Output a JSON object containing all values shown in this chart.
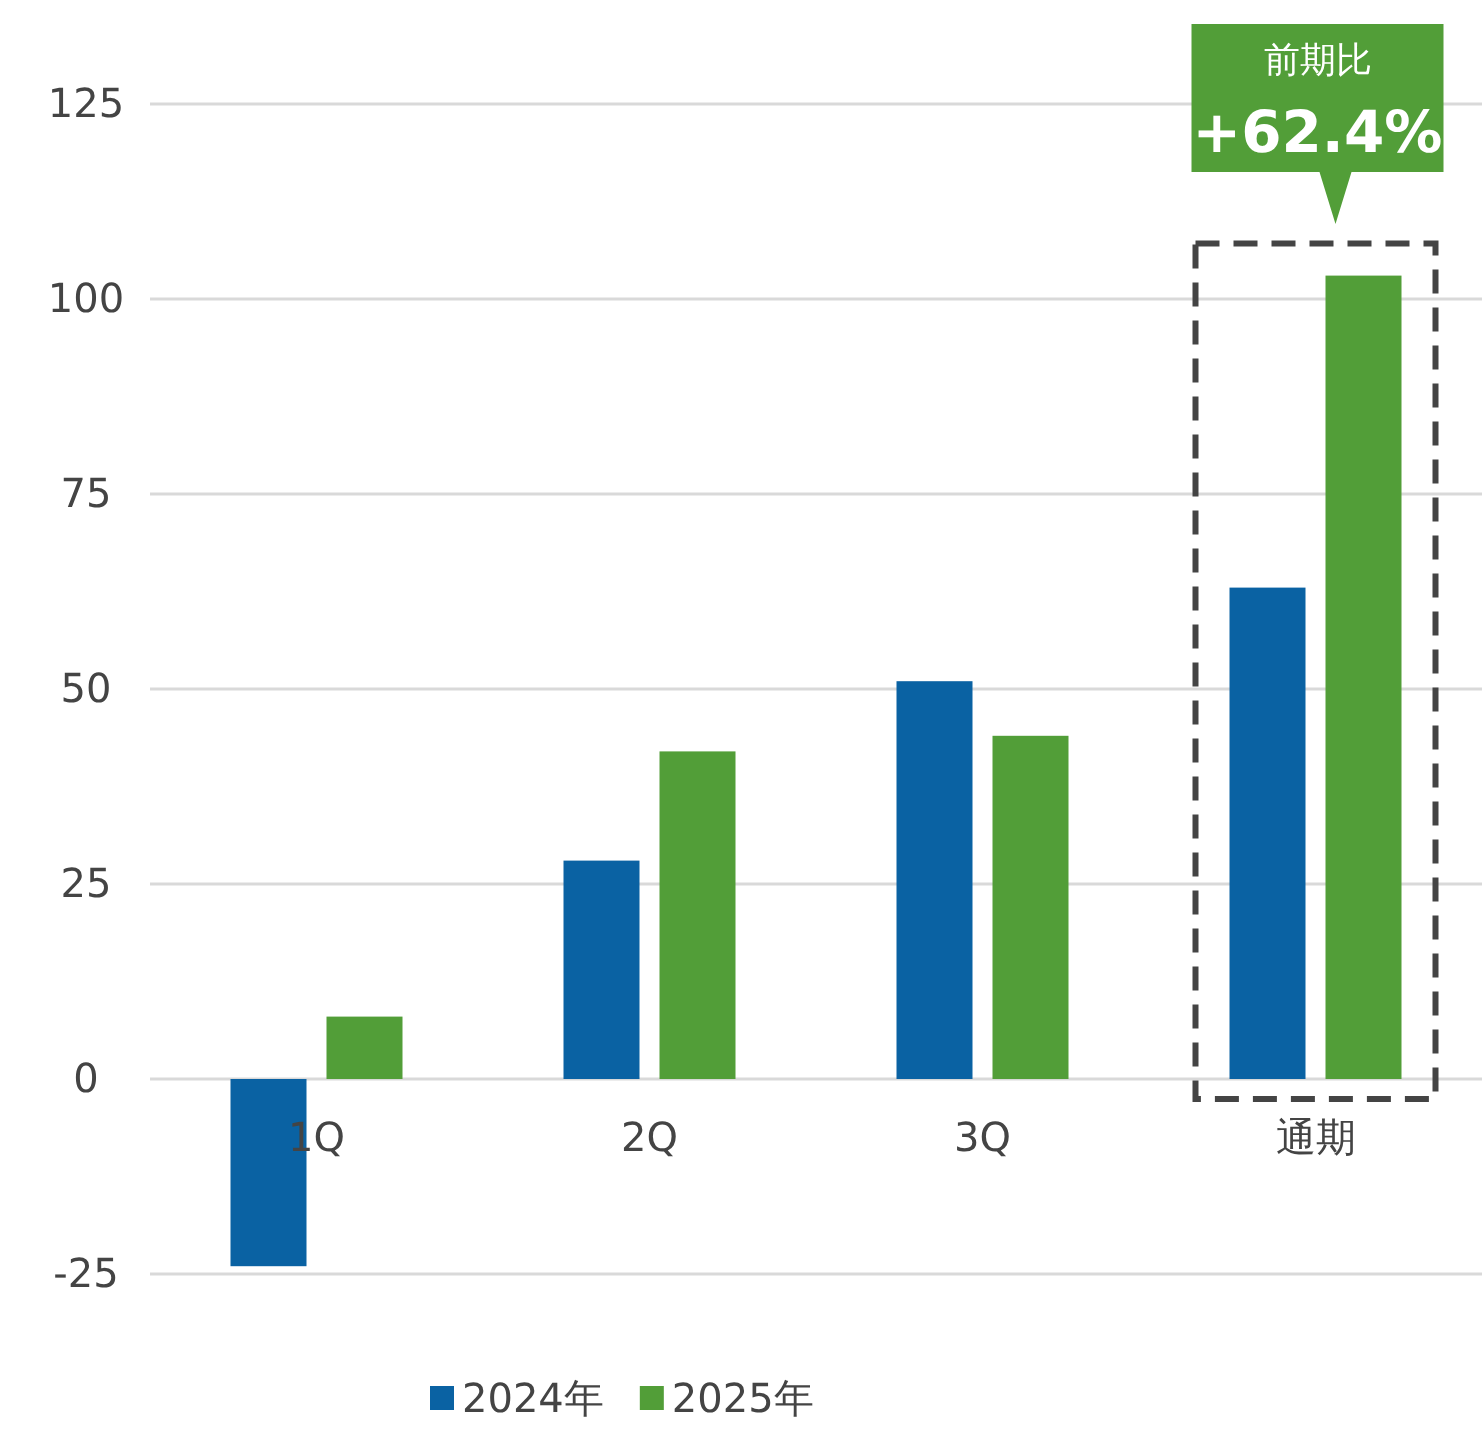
{
  "chart_data": {
    "type": "bar",
    "categories": [
      "1Q",
      "2Q",
      "3Q",
      "通期"
    ],
    "series": [
      {
        "name": "2024年",
        "color": "#0a62a3",
        "values": [
          -24,
          28,
          51,
          63
        ]
      },
      {
        "name": "2025年",
        "color": "#529e38",
        "values": [
          8,
          42,
          44,
          103
        ]
      }
    ],
    "ylim": [
      -25,
      125
    ],
    "yticks": [
      -25,
      0,
      25,
      50,
      75,
      100,
      125
    ],
    "grid": "y",
    "legend": "bottom",
    "annotations": [
      "前期比",
      "+62.4%"
    ]
  }
}
